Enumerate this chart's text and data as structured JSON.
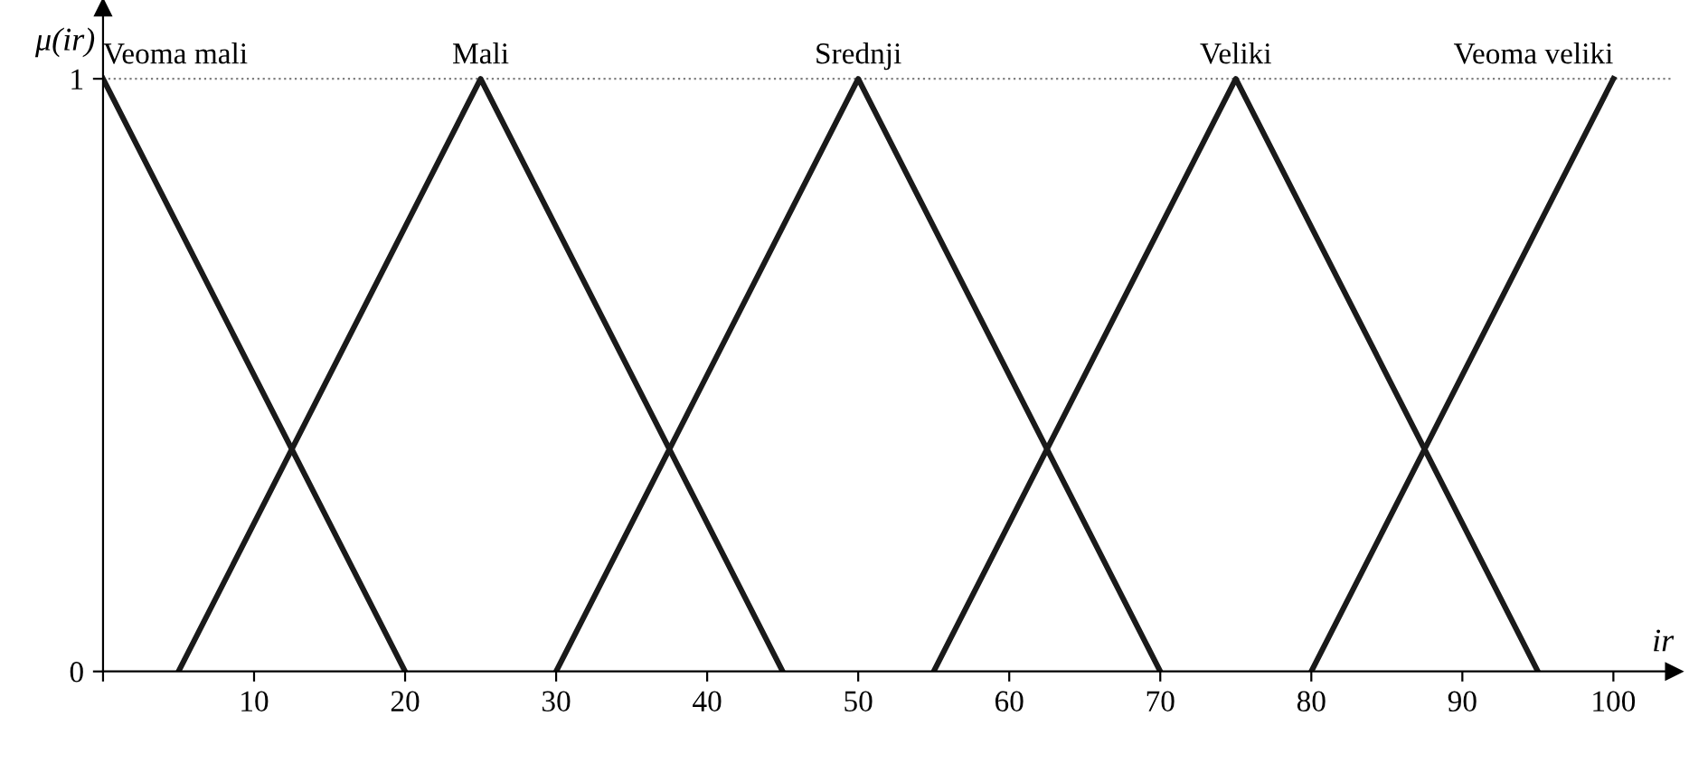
{
  "chart_data": {
    "type": "line",
    "xlabel": "ir",
    "ylabel": "μ(ir)",
    "series": [
      {
        "name": "Veoma mali",
        "color": "#1a1a1a",
        "x": [
          0,
          20
        ],
        "values": [
          1,
          0
        ]
      },
      {
        "name": "Mali",
        "color": "#1a1a1a",
        "x": [
          5,
          25,
          45
        ],
        "values": [
          0,
          1,
          0
        ]
      },
      {
        "name": "Srednji",
        "color": "#1a1a1a",
        "x": [
          30,
          50,
          70
        ],
        "values": [
          0,
          1,
          0
        ]
      },
      {
        "name": "Veliki",
        "color": "#1a1a1a",
        "x": [
          55,
          75,
          95
        ],
        "values": [
          0,
          1,
          0
        ]
      },
      {
        "name": "Veoma veliki",
        "color": "#1a1a1a",
        "x": [
          80,
          100
        ],
        "values": [
          0,
          1
        ]
      }
    ],
    "xlim": [
      0,
      104
    ],
    "ylim": [
      0,
      1.12
    ],
    "xticks": [
      {
        "value": 0,
        "label": null
      },
      10,
      20,
      30,
      40,
      50,
      60,
      70,
      80,
      90,
      100
    ],
    "yticks": [
      {
        "value": 0,
        "label": "0"
      },
      1
    ],
    "ref_lines": [
      {
        "axis": "y",
        "value": 1,
        "color": "#808080",
        "line_style": "dotted"
      }
    ],
    "grid": false,
    "legend": false,
    "marker": "none",
    "line_style": "solid"
  }
}
